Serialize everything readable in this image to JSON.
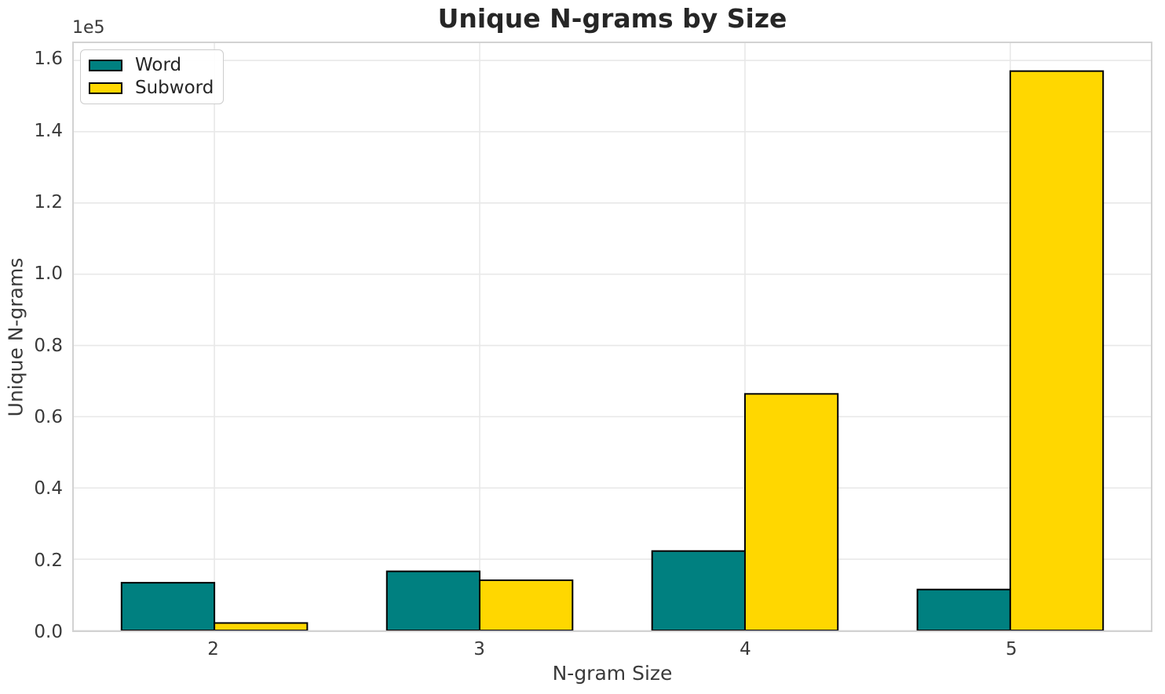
{
  "chart_data": {
    "type": "bar",
    "title": "Unique N-grams by Size",
    "xlabel": "N-gram Size",
    "ylabel": "Unique N-grams",
    "y_offset_label": "1e5",
    "categories": [
      "2",
      "3",
      "4",
      "5"
    ],
    "series": [
      {
        "name": "Word",
        "color": "#008080",
        "values": [
          13400,
          16600,
          22300,
          11500
        ]
      },
      {
        "name": "Subword",
        "color": "#FFD700",
        "values": [
          2100,
          14100,
          66400,
          157000
        ]
      }
    ],
    "ylim": [
      0,
      164850
    ],
    "yticks": {
      "values": [
        0,
        20000,
        40000,
        60000,
        80000,
        100000,
        120000,
        140000,
        160000
      ],
      "labels": [
        "0.0",
        "0.2",
        "0.4",
        "0.6",
        "0.8",
        "1.0",
        "1.2",
        "1.4",
        "1.6"
      ]
    },
    "bar_width_fraction": 0.35,
    "x_edge_padding": 0.53,
    "grid": true,
    "legend_position": "upper left",
    "colors": {
      "bar_edge": "#000000",
      "grid": "#e8e8e8",
      "spine": "#d2d2d2",
      "tick_text": "#3a3a3a",
      "title_text": "#262626",
      "background": "#ffffff",
      "legend_border": "#cccccc"
    }
  }
}
